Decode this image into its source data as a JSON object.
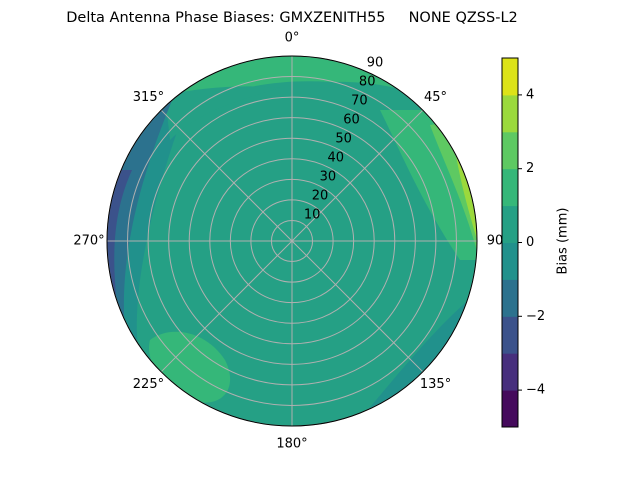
{
  "chart_data": {
    "type": "polar-contour",
    "title": "Delta Antenna Phase Biases: GMXZENITH55     NONE QZSS-L2",
    "theta_ticks": [
      {
        "value": 0,
        "label": "0°"
      },
      {
        "value": 45,
        "label": "45°"
      },
      {
        "value": 90,
        "label": "90"
      },
      {
        "value": 135,
        "label": "135°"
      },
      {
        "value": 180,
        "label": "180°"
      },
      {
        "value": 225,
        "label": "225°"
      },
      {
        "value": 270,
        "label": "270°"
      },
      {
        "value": 315,
        "label": "315°"
      }
    ],
    "rlim": [
      0,
      90
    ],
    "rticks": [
      10,
      20,
      30,
      40,
      50,
      60,
      70,
      80,
      90
    ],
    "grid": true,
    "colorbar": {
      "label": "Bias (mm)",
      "levels": [
        -5,
        -4,
        -3,
        -2,
        -1,
        0,
        1,
        2,
        3,
        4,
        5
      ],
      "colors": [
        "#450a5c",
        "#472f7d",
        "#3b528b",
        "#2c728e",
        "#21918c",
        "#25a085",
        "#35b779",
        "#5ec962",
        "#9bd93c",
        "#dde318"
      ],
      "ticks": [
        {
          "value": -4,
          "label": "−4"
        },
        {
          "value": -2,
          "label": "−2"
        },
        0,
        2,
        4
      ]
    }
  }
}
